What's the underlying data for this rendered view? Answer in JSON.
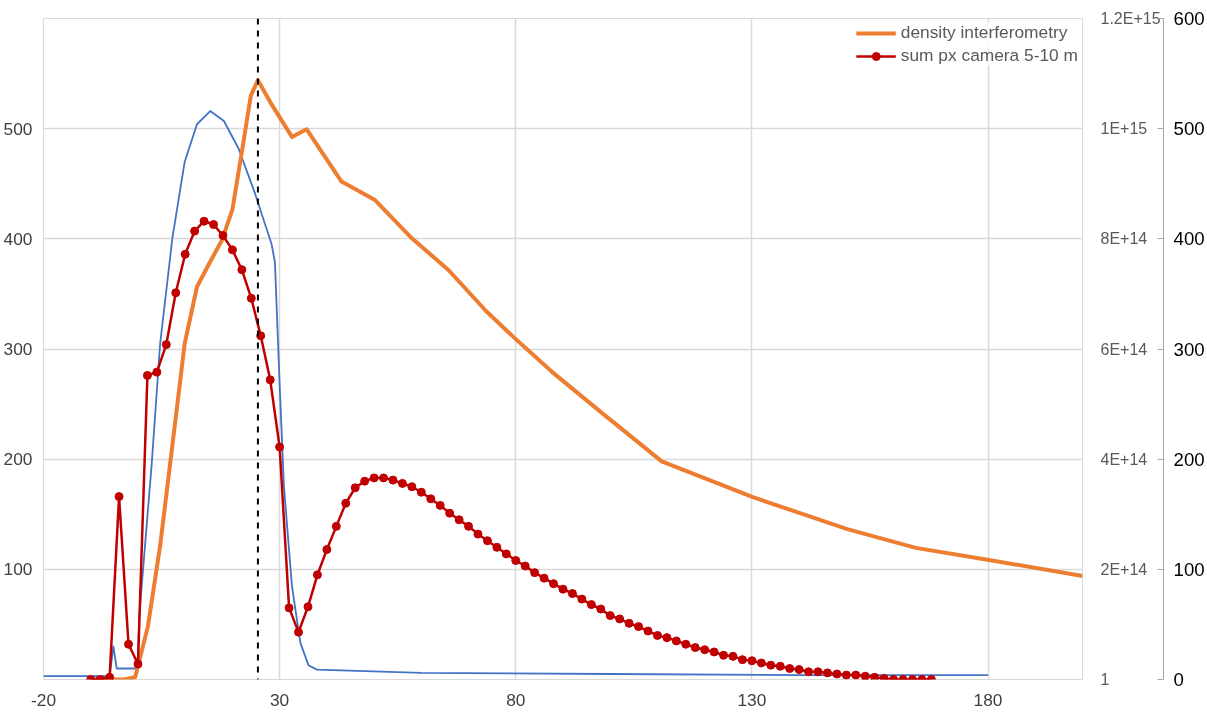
{
  "chart_data": {
    "type": "line",
    "xlim": [
      -20,
      200
    ],
    "xticks": [
      -20,
      30,
      80,
      130,
      180
    ],
    "ylim": [
      0,
      600
    ],
    "yticks": [
      100,
      200,
      300,
      400,
      500
    ],
    "y2lim": [
      0,
      1200000000000000.0
    ],
    "y2ticks": [
      {
        "value": 1,
        "label": "1"
      },
      {
        "value": 200000000000000.0,
        "label": "2E+14"
      },
      {
        "value": 400000000000000.0,
        "label": "4E+14"
      },
      {
        "value": 600000000000000.0,
        "label": "6E+14"
      },
      {
        "value": 800000000000000.0,
        "label": "8E+14"
      },
      {
        "value": 1000000000000000.0,
        "label": "1E+15"
      },
      {
        "value": 1200000000000000.0,
        "label": "1.2E+15"
      }
    ],
    "y3lim": [
      0,
      600
    ],
    "y3ticks": [
      0,
      100,
      200,
      300,
      400,
      500,
      600
    ],
    "grid": true,
    "legend": "top right",
    "line_style": "solid",
    "ref_lines": [
      {
        "axis": "x",
        "value": 25.4,
        "color": "#000000",
        "line_style": "dashed"
      }
    ],
    "series": [
      {
        "color": "#4472c4",
        "axis": "y",
        "marker": "none",
        "x": [
          -20,
          -10,
          -6,
          -5.2,
          -4.5,
          -2,
          -0.1,
          0.3,
          2.9,
          4.7,
          7.3,
          9.9,
          12.5,
          15.3,
          18.2,
          21.3,
          24.8,
          28.3,
          29,
          30,
          30.9,
          32.6,
          34.4,
          36.1,
          37.9,
          60,
          100,
          140,
          180
        ],
        "values": [
          3,
          3,
          3,
          30,
          10,
          10,
          10,
          59,
          195,
          305,
          401,
          470,
          504,
          516,
          507,
          482,
          441,
          395,
          379,
          268,
          176,
          85,
          33,
          13,
          9,
          6,
          5,
          4,
          4
        ]
      },
      {
        "name": "density interferometry",
        "color": "#ed7d31",
        "axis": "y2",
        "marker": "none",
        "x": [
          -10,
          -3,
          -0.6,
          2.1,
          4.7,
          7.3,
          9.9,
          12.5,
          15.2,
          17.8,
          20,
          22.1,
          23.9,
          25.4,
          28.3,
          32.6,
          35.7,
          43.1,
          50.1,
          58,
          65.8,
          73.7,
          80,
          87.6,
          98.1,
          110.9,
          130.2,
          150.2,
          164.7,
          180.2,
          200
        ],
        "values": [
          0,
          0,
          4000000000000.0,
          96000000000000.0,
          243000000000000.0,
          426000000000000.0,
          610000000000000.0,
          713000000000000.0,
          757000000000000.0,
          798000000000000.0,
          853000000000000.0,
          963000000000000.0,
          1060000000000000.0,
          1088000000000000.0,
          1044000000000000.0,
          985000000000000.0,
          999000000000000.0,
          904000000000000.0,
          871000000000000.0,
          801000000000000.0,
          743000000000000.0,
          669000000000000.0,
          618000000000000.0,
          559000000000000.0,
          485000000000000.0,
          396000000000000.0,
          331000000000000.0,
          273000000000000.0,
          239000000000000.0,
          217000000000000.0,
          188000000000000.0
        ]
      },
      {
        "name": "sum px camera 5-10 m",
        "color": "#c00000",
        "axis": "y3",
        "marker": "circle",
        "x": [
          -10,
          -8,
          -6,
          -4,
          -2,
          0,
          2,
          4,
          6,
          8,
          10,
          12,
          14,
          16,
          18,
          20,
          22,
          24,
          26,
          28,
          30,
          32,
          34,
          36,
          38,
          40,
          42,
          44,
          46,
          48,
          50,
          52,
          54,
          56,
          58,
          60,
          62,
          64,
          66,
          68,
          70,
          72,
          74,
          76,
          78,
          80,
          82,
          84,
          86,
          88,
          90,
          92,
          94,
          96,
          98,
          100,
          102,
          104,
          106,
          108,
          110,
          112,
          114,
          116,
          118,
          120,
          122,
          124,
          126,
          128,
          130,
          132,
          134,
          136,
          138,
          140,
          142,
          144,
          146,
          148,
          150,
          152,
          154,
          156,
          158,
          160,
          162,
          164,
          166,
          168
        ],
        "values": [
          0,
          0,
          2,
          166,
          32,
          14,
          276,
          279,
          304,
          351,
          386,
          407,
          416,
          413,
          403,
          390,
          372,
          346,
          312,
          272,
          211,
          65,
          43,
          66,
          95,
          118,
          139,
          160,
          174,
          180,
          183,
          183,
          181,
          178,
          175,
          170,
          164,
          158,
          151,
          145,
          139,
          132,
          126,
          120,
          114,
          108,
          103,
          97,
          92,
          87,
          82,
          78,
          73,
          68,
          64,
          58,
          55,
          51,
          48,
          44,
          40,
          38,
          35,
          32,
          29,
          27,
          25,
          22,
          21,
          18,
          17,
          15,
          13,
          12,
          10,
          9,
          7,
          7,
          6,
          5,
          4,
          4,
          3,
          2,
          1,
          0,
          0,
          0,
          0,
          0
        ]
      }
    ]
  }
}
